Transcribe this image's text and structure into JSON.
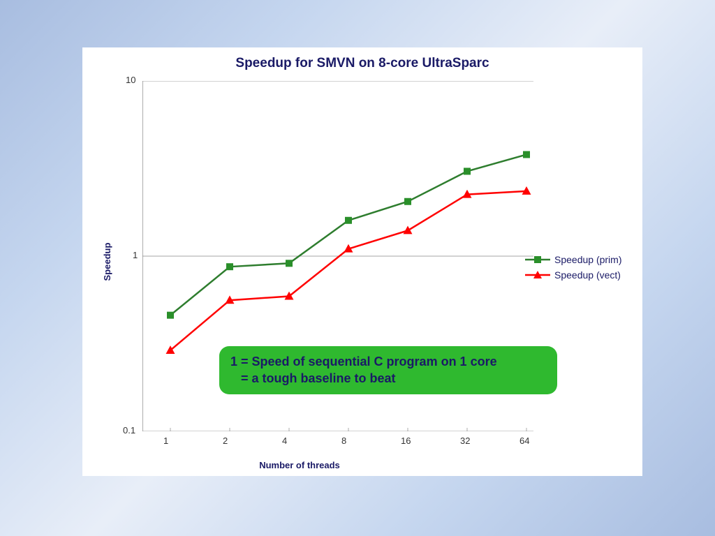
{
  "chart": {
    "type": "line",
    "title": "Speedup for SMVN on 8-core UltraSparc",
    "title_fontsize": 19,
    "title_color": "#1a1a66",
    "ylabel": "Speedup",
    "xlabel": "Number of threads",
    "axis_label_fontsize": 13,
    "axis_label_color": "#1a1a66",
    "background_color": "#ffffff",
    "gridline_color": "#888888",
    "gridline_width": 0.7,
    "y_scale": "log",
    "ylim_min": 0.1,
    "ylim_max": 10,
    "y_ticks": [
      0.1,
      1,
      10
    ],
    "y_tick_labels": [
      "0.1",
      "1",
      "10"
    ],
    "x_scale": "categorical",
    "x_categories": [
      "1",
      "2",
      "4",
      "8",
      "16",
      "32",
      "64"
    ],
    "tick_fontsize": 13,
    "tick_color": "#333333",
    "series": [
      {
        "name": "Speedup (prim)",
        "color_line": "#2e7d2e",
        "color_marker": "#2a8f2a",
        "line_width": 2.5,
        "marker": "square",
        "marker_size": 10,
        "data": [
          0.46,
          0.87,
          0.91,
          1.6,
          2.05,
          3.05,
          3.8
        ]
      },
      {
        "name": "Speedup (vect)",
        "color_line": "#ff0000",
        "color_marker": "#ff0000",
        "line_width": 2.5,
        "marker": "triangle",
        "marker_size": 11,
        "data": [
          0.29,
          0.56,
          0.59,
          1.1,
          1.4,
          2.25,
          2.35
        ]
      }
    ],
    "legend_position": "right-middle",
    "legend_fontsize": 14,
    "callout": {
      "line1": "1 = Speed of sequential C program on 1 core",
      "line2": "   = a tough baseline to beat",
      "bg_color": "#2fb92f",
      "text_color": "#1a1a66",
      "fontsize": 18
    }
  }
}
